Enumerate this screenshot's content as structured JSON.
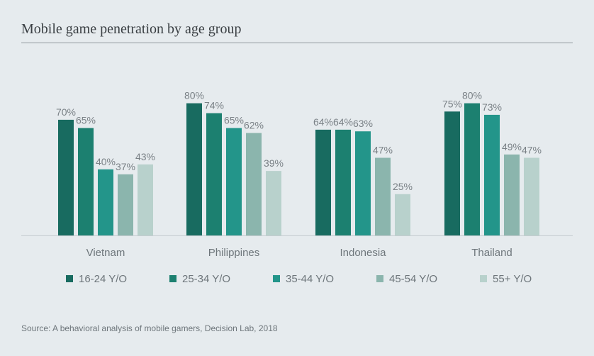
{
  "title": "Mobile game penetration by age group",
  "source": "Source: A behavioral analysis of mobile gamers, Decision Lab, 2018",
  "chart_data": {
    "type": "bar",
    "title": "Mobile game penetration by age group",
    "categories": [
      "Vietnam",
      "Philippines",
      "Indonesia",
      "Thailand"
    ],
    "series": [
      {
        "name": "16-24 Y/O",
        "color": "#186b60",
        "values": [
          70,
          80,
          64,
          75
        ]
      },
      {
        "name": "25-34 Y/O",
        "color": "#1c8070",
        "values": [
          65,
          74,
          64,
          80
        ]
      },
      {
        "name": "35-44 Y/O",
        "color": "#23958a",
        "values": [
          40,
          65,
          63,
          73
        ]
      },
      {
        "name": "45-54 Y/O",
        "color": "#8bb5ad",
        "values": [
          37,
          62,
          47,
          49
        ]
      },
      {
        "name": "55+ Y/O",
        "color": "#b8d1cc",
        "values": [
          43,
          39,
          25,
          47
        ]
      }
    ],
    "value_suffix": "%",
    "xlabel": "",
    "ylabel": "",
    "ylim": [
      0,
      100
    ],
    "legend_position": "bottom",
    "grid": false
  }
}
